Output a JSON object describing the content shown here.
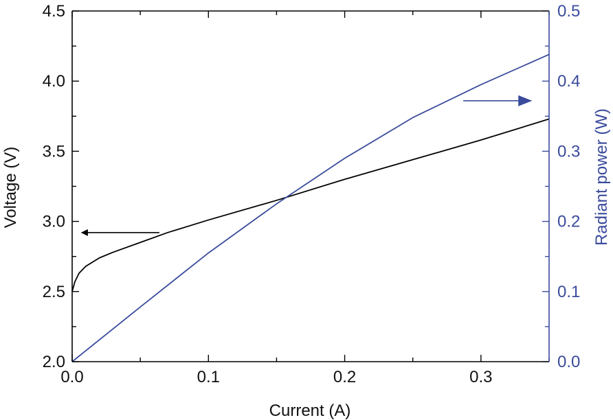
{
  "chart_data": {
    "type": "line",
    "title": "",
    "xlabel": "Current (A)",
    "ylabel": "Voltage (V)",
    "y2label": "Radiant power (W)",
    "xlim": [
      0,
      0.35
    ],
    "ylim": [
      2.0,
      4.5
    ],
    "y2lim": [
      0,
      0.5
    ],
    "grid": false,
    "xticks": [
      0.0,
      0.1,
      0.2,
      0.3
    ],
    "xtick_labels": [
      "0.0",
      "0.1",
      "0.2",
      "0.3"
    ],
    "yticks": [
      2.0,
      2.5,
      3.0,
      3.5,
      4.0,
      4.5
    ],
    "ytick_labels": [
      "2.0",
      "2.5",
      "3.0",
      "3.5",
      "4.0",
      "4.5"
    ],
    "y2ticks": [
      0.0,
      0.1,
      0.2,
      0.3,
      0.4,
      0.5
    ],
    "y2tick_labels": [
      "0.0",
      "0.1",
      "0.2",
      "0.3",
      "0.4",
      "0.5"
    ],
    "colors": {
      "voltage": "#000000",
      "power": "#3a4b9c",
      "axes": "#000000"
    },
    "series": [
      {
        "axis": "left",
        "color": "#000000",
        "x": [
          0.0,
          0.002,
          0.005,
          0.01,
          0.02,
          0.03,
          0.05,
          0.07,
          0.1,
          0.15,
          0.2,
          0.25,
          0.3,
          0.35
        ],
        "y": [
          2.5,
          2.57,
          2.63,
          2.68,
          2.74,
          2.78,
          2.85,
          2.92,
          3.01,
          3.15,
          3.3,
          3.44,
          3.58,
          3.73
        ]
      },
      {
        "axis": "right",
        "color": "#3a4b9c",
        "x": [
          0.0,
          0.05,
          0.1,
          0.15,
          0.2,
          0.25,
          0.3,
          0.35
        ],
        "y": [
          0.0,
          0.078,
          0.155,
          0.225,
          0.29,
          0.348,
          0.395,
          0.438
        ]
      }
    ],
    "annotations": [
      {
        "type": "arrow",
        "points_to": "left-axis",
        "color": "#000000",
        "x": [
          0.064,
          0.007
        ],
        "y": [
          2.92,
          2.92
        ]
      },
      {
        "type": "arrow",
        "points_to": "right-axis",
        "color": "#3a4b9c",
        "x": [
          0.287,
          0.337
        ],
        "y2": [
          0.372,
          0.372
        ]
      }
    ]
  }
}
